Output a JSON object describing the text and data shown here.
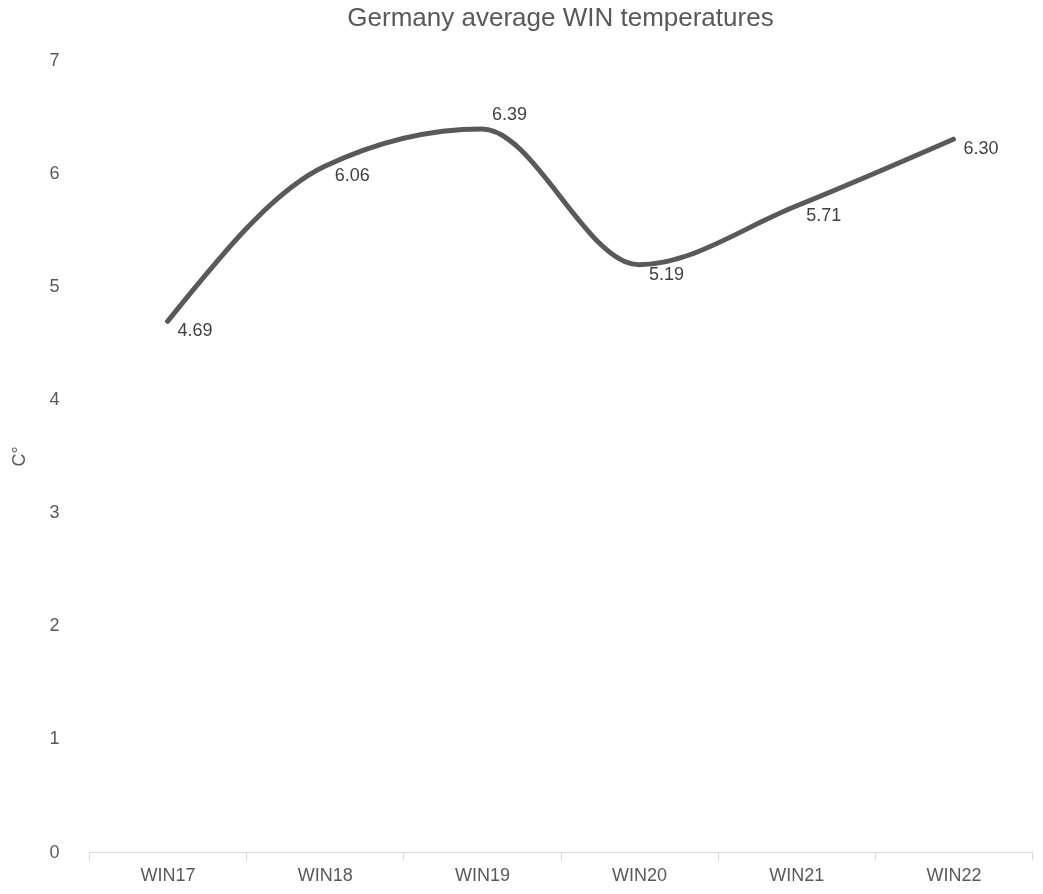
{
  "chart_data": {
    "type": "line",
    "title": "Germany average WIN temperatures",
    "ylabel": "C°",
    "categories": [
      "WIN17",
      "WIN18",
      "WIN19",
      "WIN20",
      "WIN21",
      "WIN22"
    ],
    "series": [
      {
        "color": "#595959",
        "values": [
          4.69,
          6.06,
          6.39,
          5.19,
          5.71,
          6.3
        ],
        "value_labels": [
          "4.69",
          "6.06",
          "6.39",
          "5.19",
          "5.71",
          "6.30"
        ]
      }
    ],
    "ylim": [
      0,
      7
    ],
    "yticks": [
      0,
      1,
      2,
      3,
      4,
      5,
      6,
      7
    ],
    "grid": false,
    "legend": false,
    "marker": "none",
    "line_style": "solid"
  }
}
